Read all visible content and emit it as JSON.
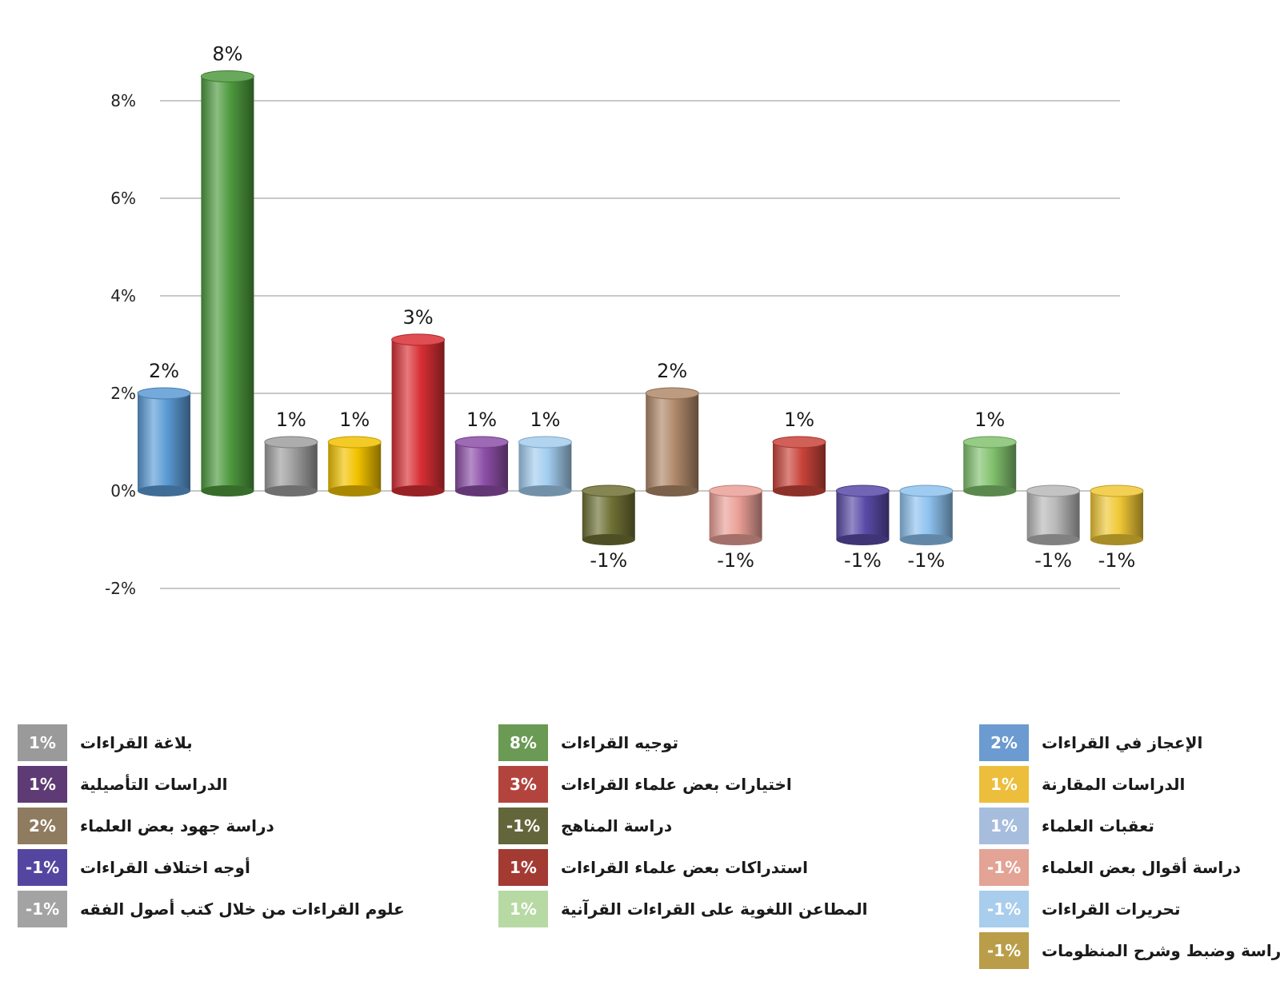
{
  "chart_data": {
    "type": "bar",
    "yticks": [
      "-2%",
      "0%",
      "2%",
      "4%",
      "6%",
      "8%"
    ],
    "ylim": [
      -2,
      8
    ],
    "grid": true,
    "bars": [
      {
        "value": 2,
        "label": "2%",
        "color": "#5b9bd5"
      },
      {
        "value": 8.5,
        "label": "8%",
        "color": "#4e9a3e"
      },
      {
        "value": 1,
        "label": "1%",
        "color": "#9e9e9e"
      },
      {
        "value": 1,
        "label": "1%",
        "color": "#f2c200"
      },
      {
        "value": 3.1,
        "label": "3%",
        "color": "#d82f35"
      },
      {
        "value": 1,
        "label": "1%",
        "color": "#8d4fa8"
      },
      {
        "value": 1,
        "label": "1%",
        "color": "#a3cdef"
      },
      {
        "value": -1,
        "label": "-1%",
        "color": "#6f7135"
      },
      {
        "value": 2,
        "label": "2%",
        "color": "#b0896a"
      },
      {
        "value": -1,
        "label": "-1%",
        "color": "#eaa097"
      },
      {
        "value": 1,
        "label": "1%",
        "color": "#c9443a"
      },
      {
        "value": -1,
        "label": "-1%",
        "color": "#5a4aa8"
      },
      {
        "value": -1,
        "label": "-1%",
        "color": "#8ec2ef"
      },
      {
        "value": 1,
        "label": "1%",
        "color": "#82c26e"
      },
      {
        "value": -1,
        "label": "-1%",
        "color": "#b8b8b8"
      },
      {
        "value": -1,
        "label": "-1%",
        "color": "#f0c835"
      }
    ]
  },
  "legend": {
    "col1": [
      {
        "value": "1%",
        "label": "بلاغة القراءات",
        "color": "#9a9a9a"
      },
      {
        "value": "1%",
        "label": "الدراسات التأصيلية",
        "color": "#5e3b74"
      },
      {
        "value": "2%",
        "label": "دراسة جهود بعض العلماء",
        "color": "#8f7b5f"
      },
      {
        "value": "-1%",
        "label": "أوجه اختلاف القراءات",
        "color": "#5446a0"
      },
      {
        "value": "-1%",
        "label": "علوم القراءات من خلال كتب أصول الفقه",
        "color": "#a3a3a3"
      }
    ],
    "col2": [
      {
        "value": "8%",
        "label": "توجيه القراءات",
        "color": "#6a9a53"
      },
      {
        "value": "3%",
        "label": "اختيارات بعض علماء القراءات",
        "color": "#b3443d"
      },
      {
        "value": "-1%",
        "label": "دراسة المناهج",
        "color": "#63663a"
      },
      {
        "value": "1%",
        "label": "استدراكات بعض علماء القراءات",
        "color": "#a33b33"
      },
      {
        "value": "1%",
        "label": "المطاعن اللغوية على القراءات القرآنية",
        "color": "#b7d9a3"
      }
    ],
    "col3": [
      {
        "value": "2%",
        "label": "الإعجاز في القراءات",
        "color": "#6b9bd0"
      },
      {
        "value": "1%",
        "label": "الدراسات المقارنة",
        "color": "#ecbe3b"
      },
      {
        "value": "1%",
        "label": "تعقبات العلماء",
        "color": "#a7bddd"
      },
      {
        "value": "-1%",
        "label": "دراسة أقوال بعض العلماء",
        "color": "#e3a395"
      },
      {
        "value": "-1%",
        "label": "تحريرات القراءات",
        "color": "#a9cdec"
      },
      {
        "value": "-1%",
        "label": "دراسة وضبط وشرح المنظومات",
        "color": "#b99d48"
      }
    ]
  }
}
